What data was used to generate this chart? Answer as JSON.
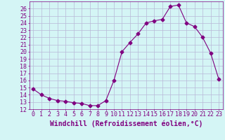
{
  "x": [
    0,
    1,
    2,
    3,
    4,
    5,
    6,
    7,
    8,
    9,
    10,
    11,
    12,
    13,
    14,
    15,
    16,
    17,
    18,
    19,
    20,
    21,
    22,
    23
  ],
  "y": [
    14.8,
    14.0,
    13.5,
    13.2,
    13.1,
    12.9,
    12.8,
    12.5,
    12.5,
    13.2,
    16.0,
    20.0,
    21.3,
    22.5,
    24.0,
    24.3,
    24.5,
    26.3,
    26.5,
    24.0,
    23.5,
    22.0,
    19.8,
    16.2
  ],
  "line_color": "#800080",
  "marker": "D",
  "marker_size": 2.5,
  "bg_color": "#d4f5f5",
  "grid_color": "#b8b8d8",
  "xlabel": "Windchill (Refroidissement éolien,°C)",
  "xlim": [
    -0.5,
    23.5
  ],
  "ylim": [
    12,
    27
  ],
  "yticks": [
    12,
    13,
    14,
    15,
    16,
    17,
    18,
    19,
    20,
    21,
    22,
    23,
    24,
    25,
    26
  ],
  "xtick_labels": [
    "0",
    "1",
    "2",
    "3",
    "4",
    "5",
    "6",
    "7",
    "8",
    "9",
    "10",
    "11",
    "12",
    "13",
    "14",
    "15",
    "16",
    "17",
    "18",
    "19",
    "20",
    "21",
    "22",
    "23"
  ],
  "font_color": "#800080",
  "font_size": 6,
  "xlabel_fontsize": 7
}
